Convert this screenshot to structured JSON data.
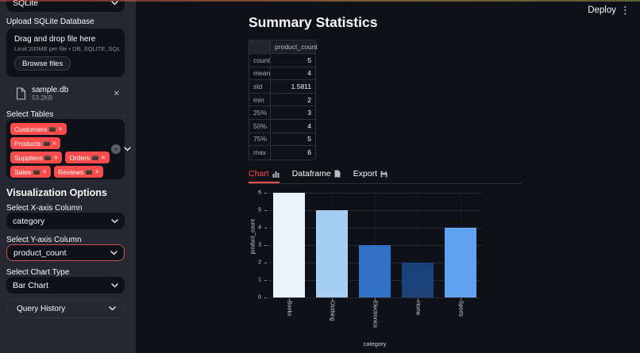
{
  "app": {
    "deploy_label": "Deploy"
  },
  "colors": {
    "accent": "#ff4b4b",
    "sidebar_bg": "#262730",
    "page_bg": "#0e1117"
  },
  "sidebar": {
    "db_type_select": {
      "value": "SQLite"
    },
    "upload_label": "Upload SQLite Database",
    "uploader": {
      "title": "Drag and drop file here",
      "limit": "Limit 200MB per file • DB, SQLITE, SQL",
      "browse_button": "Browse files"
    },
    "uploaded_file": {
      "name": "sample.db",
      "size": "53.2KB"
    },
    "select_tables_label": "Select Tables",
    "table_tag_rows": [
      [
        "Customers"
      ],
      [
        "Products"
      ],
      [
        "Suppliers",
        "Orders"
      ],
      [
        "Sales",
        "Reviews"
      ]
    ],
    "viz_heading": "Visualization Options",
    "x_axis": {
      "label": "Select X-axis Column",
      "value": "category"
    },
    "y_axis": {
      "label": "Select Y-axis Column",
      "value": "product_count"
    },
    "chart_type": {
      "label": "Select Chart Type",
      "value": "Bar Chart"
    },
    "query_history_label": "Query History"
  },
  "main": {
    "title": "Summary Statistics",
    "stats_table": {
      "value_column": "product_count",
      "rows": [
        [
          "count",
          "5"
        ],
        [
          "mean",
          "4"
        ],
        [
          "std",
          "1.5811"
        ],
        [
          "min",
          "2"
        ],
        [
          "25%",
          "3"
        ],
        [
          "50%",
          "4"
        ],
        [
          "75%",
          "5"
        ],
        [
          "max",
          "6"
        ]
      ]
    },
    "tabs": [
      {
        "label": "Chart",
        "icon": "bar-chart-icon",
        "active": true
      },
      {
        "label": "Dataframe",
        "icon": "page-icon",
        "active": false
      },
      {
        "label": "Export",
        "icon": "save-icon",
        "active": false
      }
    ]
  },
  "chart_data": {
    "type": "bar",
    "categories": [
      "Books",
      "Clothing",
      "Electronics",
      "Home",
      "Sports"
    ],
    "values": [
      6,
      5,
      3,
      2,
      4
    ],
    "bar_colors": [
      "#e9f2fb",
      "#a6cef2",
      "#3170c2",
      "#1c4279",
      "#60a1ee"
    ],
    "title": "",
    "xlabel": "category",
    "ylabel": "product_count",
    "ylim": [
      0,
      6
    ],
    "yticks": [
      0,
      1,
      2,
      3,
      4,
      5,
      6
    ],
    "grid": true,
    "legend": false
  }
}
